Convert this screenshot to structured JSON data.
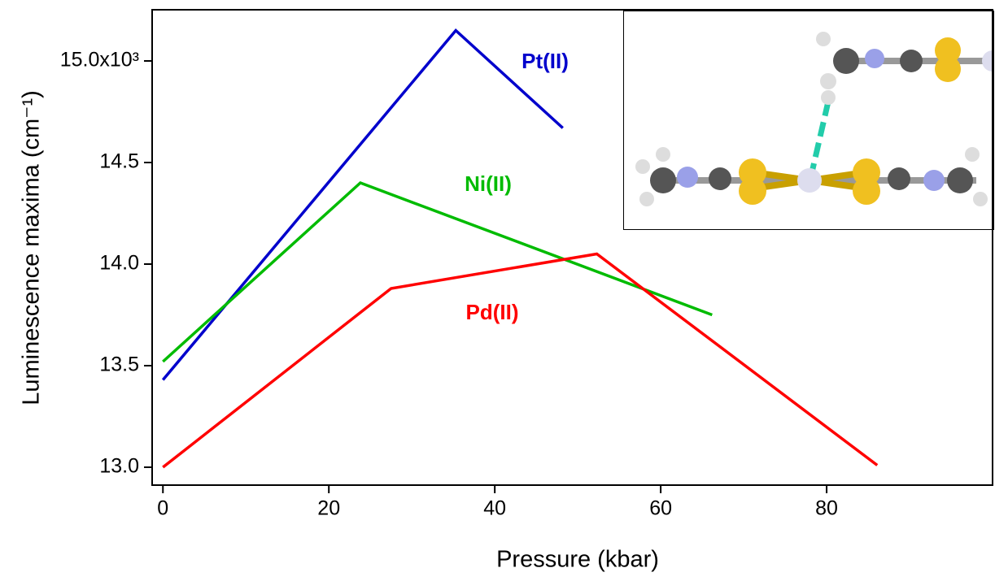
{
  "chart_data": {
    "type": "line",
    "xlabel": "Pressure (kbar)",
    "ylabel": "Luminescence maxima (cm⁻¹)",
    "xlim": [
      -1.3,
      100
    ],
    "ylim": [
      12.912,
      15.252
    ],
    "xticks": [
      0,
      20,
      40,
      60,
      80
    ],
    "yticks": [
      {
        "value": 13,
        "label": "13.0"
      },
      {
        "value": 13.5,
        "label": "13.5"
      },
      {
        "value": 14,
        "label": "14.0"
      },
      {
        "value": 14.5,
        "label": "14.5"
      },
      {
        "value": 15,
        "label": "15.0x10³"
      }
    ],
    "series": [
      {
        "name": "Pt(II)",
        "color": "#0000cc",
        "x": [
          0,
          35.3,
          48.2
        ],
        "values": [
          13.43,
          15.15,
          14.67
        ]
      },
      {
        "name": "Ni(II)",
        "color": "#00bb00",
        "x": [
          0,
          23.8,
          66.2
        ],
        "values": [
          13.52,
          14.4,
          13.75
        ]
      },
      {
        "name": "Pd(II)",
        "color": "#ff0000",
        "x": [
          0,
          27.5,
          52.3,
          86.1
        ],
        "values": [
          13.0,
          13.88,
          14.05,
          13.01
        ]
      }
    ]
  }
}
